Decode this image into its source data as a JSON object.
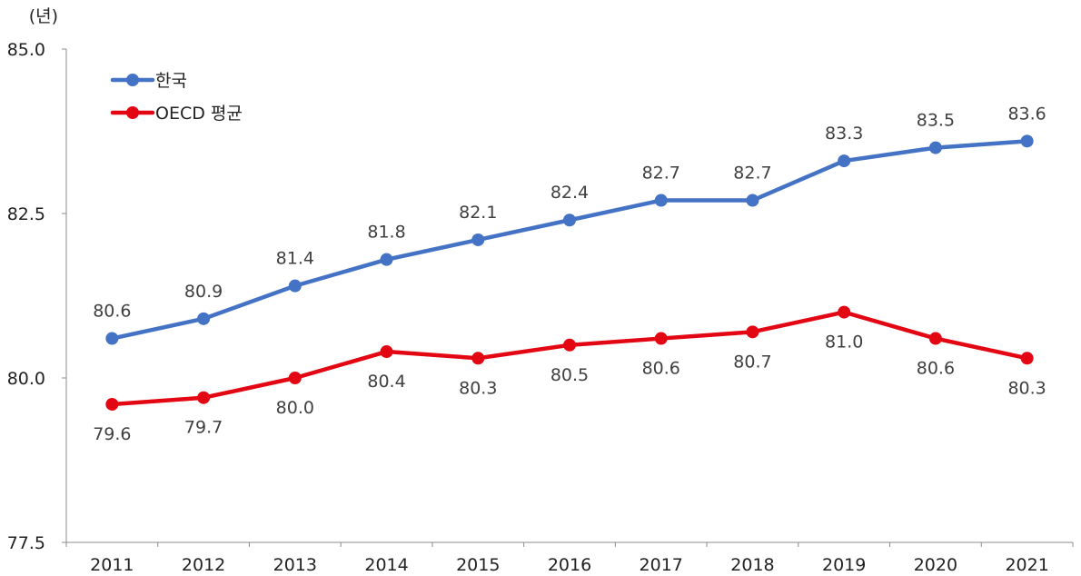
{
  "chart_data": {
    "type": "line",
    "unit_label": "(년)",
    "categories": [
      "2011",
      "2012",
      "2013",
      "2014",
      "2015",
      "2016",
      "2017",
      "2018",
      "2019",
      "2020",
      "2021"
    ],
    "y_ticks": [
      "85.0",
      "82.5",
      "80.0",
      "77.5"
    ],
    "ylim": [
      77.5,
      85.0
    ],
    "grid": false,
    "legend_position": "top-left",
    "series": [
      {
        "name": "한국",
        "color": "#4472C4",
        "values": [
          80.6,
          80.9,
          81.4,
          81.8,
          82.1,
          82.4,
          82.7,
          82.7,
          83.3,
          83.5,
          83.6
        ],
        "labels": [
          "80.6",
          "80.9",
          "81.4",
          "81.8",
          "82.1",
          "82.4",
          "82.7",
          "82.7",
          "83.3",
          "83.5",
          "83.6"
        ]
      },
      {
        "name": "OECD 평균",
        "color": "#E30613",
        "values": [
          79.6,
          79.7,
          80.0,
          80.4,
          80.3,
          80.5,
          80.6,
          80.7,
          81.0,
          80.6,
          80.3
        ],
        "labels": [
          "79.6",
          "79.7",
          "80.0",
          "80.4",
          "80.3",
          "80.5",
          "80.6",
          "80.7",
          "81.0",
          "80.6",
          "80.3"
        ]
      }
    ]
  }
}
